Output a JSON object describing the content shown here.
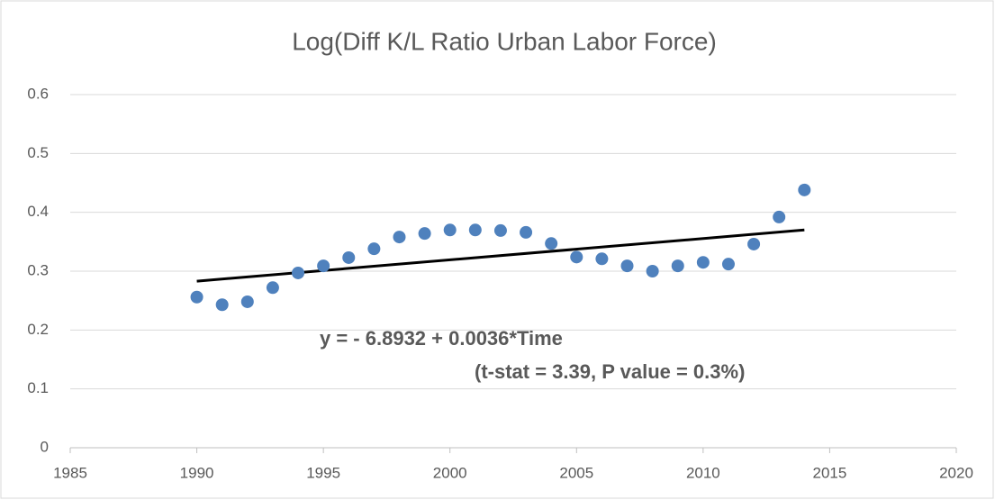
{
  "chart_data": {
    "type": "scatter",
    "title": "Log(Diff K/L Ratio Urban Labor Force)",
    "x": [
      1990,
      1991,
      1992,
      1993,
      1994,
      1995,
      1996,
      1997,
      1998,
      1999,
      2000,
      2001,
      2002,
      2003,
      2004,
      2005,
      2006,
      2007,
      2008,
      2009,
      2010,
      2011,
      2012,
      2013,
      2014
    ],
    "values": [
      0.256,
      0.243,
      0.248,
      0.272,
      0.297,
      0.309,
      0.323,
      0.338,
      0.358,
      0.364,
      0.37,
      0.37,
      0.369,
      0.366,
      0.347,
      0.324,
      0.321,
      0.309,
      0.3,
      0.309,
      0.315,
      0.312,
      0.346,
      0.392,
      0.438
    ],
    "color": "#4f81bd",
    "trendline": {
      "x": [
        1990,
        2014
      ],
      "values": [
        0.283,
        0.37
      ],
      "color": "#000000"
    },
    "annotations": [
      "y =  - 6.8932 + 0.0036*Time",
      "(t-stat = 3.39, P value = 0.3%)"
    ],
    "xlim": [
      1985,
      2020
    ],
    "xticks": [
      1985,
      1990,
      1995,
      2000,
      2005,
      2010,
      2015,
      2020
    ],
    "ylim": [
      0,
      0.6
    ],
    "yticks": [
      0,
      0.1,
      0.2,
      0.3,
      0.4,
      0.5,
      0.6
    ],
    "grid": true
  }
}
